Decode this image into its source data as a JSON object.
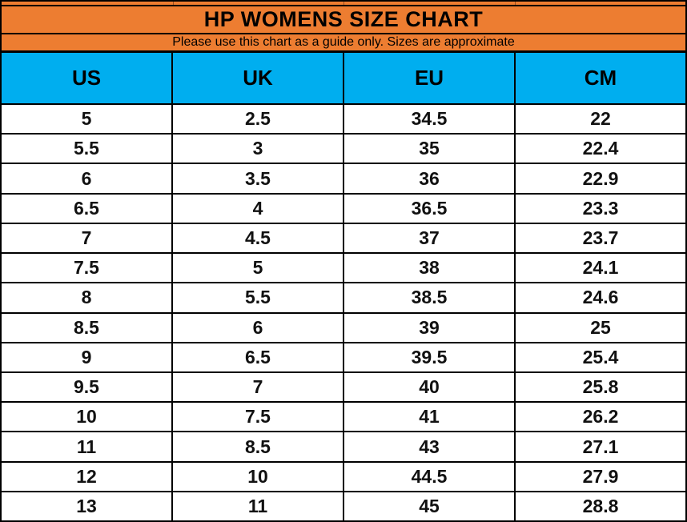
{
  "title": "HP WOMENS SIZE CHART",
  "subtitle": "Please use this chart as a guide only. Sizes are approximate",
  "colors": {
    "orange": "#ED7D31",
    "blue": "#00AEEF",
    "grid": "#000000"
  },
  "chart_data": {
    "type": "table",
    "title": "HP WOMENS SIZE CHART",
    "subtitle": "Please use this chart as a guide only. Sizes are approximate",
    "columns": [
      "US",
      "UK",
      "EU",
      "CM"
    ],
    "rows": [
      [
        "5",
        "2.5",
        "34.5",
        "22"
      ],
      [
        "5.5",
        "3",
        "35",
        "22.4"
      ],
      [
        "6",
        "3.5",
        "36",
        "22.9"
      ],
      [
        "6.5",
        "4",
        "36.5",
        "23.3"
      ],
      [
        "7",
        "4.5",
        "37",
        "23.7"
      ],
      [
        "7.5",
        "5",
        "38",
        "24.1"
      ],
      [
        "8",
        "5.5",
        "38.5",
        "24.6"
      ],
      [
        "8.5",
        "6",
        "39",
        "25"
      ],
      [
        "9",
        "6.5",
        "39.5",
        "25.4"
      ],
      [
        "9.5",
        "7",
        "40",
        "25.8"
      ],
      [
        "10",
        "7.5",
        "41",
        "26.2"
      ],
      [
        "11",
        "8.5",
        "43",
        "27.1"
      ],
      [
        "12",
        "10",
        "44.5",
        "27.9"
      ],
      [
        "13",
        "11",
        "45",
        "28.8"
      ]
    ]
  }
}
